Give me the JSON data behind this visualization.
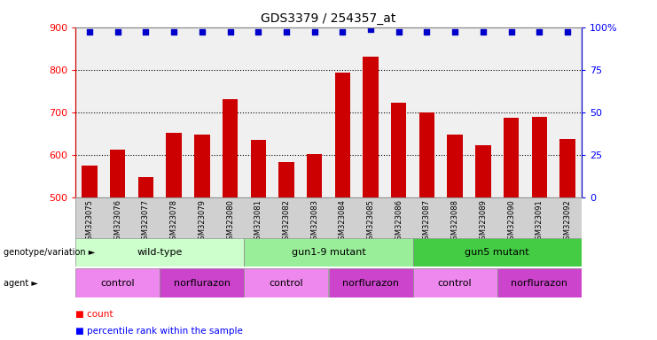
{
  "title": "GDS3379 / 254357_at",
  "categories": [
    "GSM323075",
    "GSM323076",
    "GSM323077",
    "GSM323078",
    "GSM323079",
    "GSM323080",
    "GSM323081",
    "GSM323082",
    "GSM323083",
    "GSM323084",
    "GSM323085",
    "GSM323086",
    "GSM323087",
    "GSM323088",
    "GSM323089",
    "GSM323090",
    "GSM323091",
    "GSM323092"
  ],
  "bar_values": [
    575,
    612,
    547,
    651,
    648,
    730,
    635,
    583,
    602,
    793,
    830,
    722,
    700,
    648,
    623,
    686,
    688,
    636
  ],
  "percentile_values": [
    97,
    97,
    97,
    97,
    97,
    97,
    97,
    97,
    97,
    97,
    99,
    97,
    97,
    97,
    97,
    97,
    97,
    97
  ],
  "bar_color": "#cc0000",
  "dot_color": "#0000cc",
  "ylim_left": [
    500,
    900
  ],
  "ylim_right": [
    0,
    100
  ],
  "yticks_left": [
    500,
    600,
    700,
    800,
    900
  ],
  "yticks_right": [
    0,
    25,
    50,
    75,
    100
  ],
  "yticklabels_right": [
    "0",
    "25",
    "50",
    "75",
    "100%"
  ],
  "grid_values": [
    600,
    700,
    800
  ],
  "genotype_groups": [
    {
      "label": "wild-type",
      "start": 0,
      "end": 6,
      "color": "#ccffcc"
    },
    {
      "label": "gun1-9 mutant",
      "start": 6,
      "end": 12,
      "color": "#99ee99"
    },
    {
      "label": "gun5 mutant",
      "start": 12,
      "end": 18,
      "color": "#44cc44"
    }
  ],
  "agent_groups": [
    {
      "label": "control",
      "start": 0,
      "end": 3,
      "color": "#ee88ee"
    },
    {
      "label": "norflurazon",
      "start": 3,
      "end": 6,
      "color": "#cc44cc"
    },
    {
      "label": "control",
      "start": 6,
      "end": 9,
      "color": "#ee88ee"
    },
    {
      "label": "norflurazon",
      "start": 9,
      "end": 12,
      "color": "#cc44cc"
    },
    {
      "label": "control",
      "start": 12,
      "end": 15,
      "color": "#ee88ee"
    },
    {
      "label": "norflurazon",
      "start": 15,
      "end": 18,
      "color": "#cc44cc"
    }
  ],
  "background_color": "#ffffff",
  "plot_bg_color": "#f0f0f0"
}
